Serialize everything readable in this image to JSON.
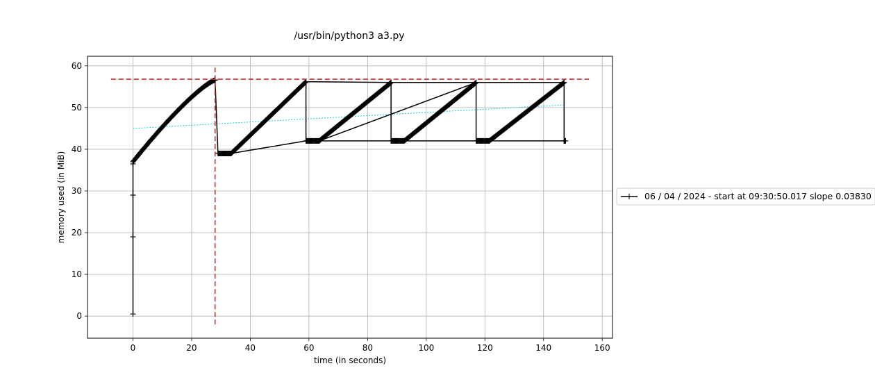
{
  "chart_data": {
    "type": "line",
    "title": "/usr/bin/python3 a3.py",
    "xlabel": "time (in seconds)",
    "ylabel": "memory used (in MiB)",
    "xlim": [
      -15.5,
      163.5
    ],
    "ylim": [
      -5.3,
      62.3
    ],
    "xticks": [
      0,
      20,
      40,
      60,
      80,
      100,
      120,
      140,
      160
    ],
    "yticks": [
      0,
      10,
      20,
      30,
      40,
      50,
      60
    ],
    "grid": true,
    "legend_position": "right",
    "legend_entries": [
      "06 / 04 / 2024 - start at 09:30:50.017 slope 0.03830"
    ],
    "colors": {
      "series": "#000000",
      "trend": "#00cccc",
      "peak_marker": "#d62728"
    },
    "series": [
      {
        "name": "06 / 04 / 2024 - start at 09:30:50.017 slope 0.03830",
        "segments": [
          {
            "x_start": 0.0,
            "y_start": 37.0,
            "x_end": 28.0,
            "y_end": 56.6,
            "points": 110,
            "shape": "concave"
          },
          {
            "x_start": 29.0,
            "y_start": 39.0,
            "x_end": 33.5,
            "y_end": 39.0,
            "points": 20,
            "shape": "linear"
          },
          {
            "x_start": 33.5,
            "y_start": 39.0,
            "x_end": 59.0,
            "y_end": 56.2,
            "points": 100,
            "shape": "linear"
          },
          {
            "x_start": 59.0,
            "y_start": 42.0,
            "x_end": 63.5,
            "y_end": 42.0,
            "points": 18,
            "shape": "linear"
          },
          {
            "x_start": 63.5,
            "y_start": 42.0,
            "x_end": 88.0,
            "y_end": 56.0,
            "points": 100,
            "shape": "linear"
          },
          {
            "x_start": 88.0,
            "y_start": 42.0,
            "x_end": 92.5,
            "y_end": 42.0,
            "points": 18,
            "shape": "linear"
          },
          {
            "x_start": 92.5,
            "y_start": 42.0,
            "x_end": 117.0,
            "y_end": 56.0,
            "points": 100,
            "shape": "linear"
          },
          {
            "x_start": 117.0,
            "y_start": 42.0,
            "x_end": 121.5,
            "y_end": 42.0,
            "points": 18,
            "shape": "linear"
          },
          {
            "x_start": 121.5,
            "y_start": 42.0,
            "x_end": 147.0,
            "y_end": 56.0,
            "points": 100,
            "shape": "linear"
          },
          {
            "x_start": 147.0,
            "y_start": 42.0,
            "x_end": 147.5,
            "y_end": 42.0,
            "points": 3,
            "shape": "linear"
          }
        ],
        "initial_points": [
          [
            0.0,
            0.5
          ],
          [
            0.0,
            19.0
          ],
          [
            0.0,
            29.0
          ],
          [
            0.0,
            36.5
          ]
        ],
        "drops": [
          [
            28.0,
            56.6,
            29.0,
            39.0
          ],
          [
            59.0,
            56.2,
            59.0,
            42.0
          ],
          [
            88.0,
            56.0,
            88.0,
            42.0
          ],
          [
            117.0,
            56.0,
            117.0,
            42.0
          ],
          [
            147.0,
            56.0,
            147.0,
            42.0
          ]
        ]
      }
    ],
    "trend_line": {
      "x": [
        0,
        147.5
      ],
      "y": [
        45.0,
        50.65
      ]
    },
    "peak_lines": {
      "horizontal": {
        "y": 56.8,
        "x_range": [
          -7.5,
          155.5
        ]
      },
      "vertical": {
        "x": 28.0,
        "y_range": [
          -2.3,
          59.6
        ]
      }
    }
  }
}
